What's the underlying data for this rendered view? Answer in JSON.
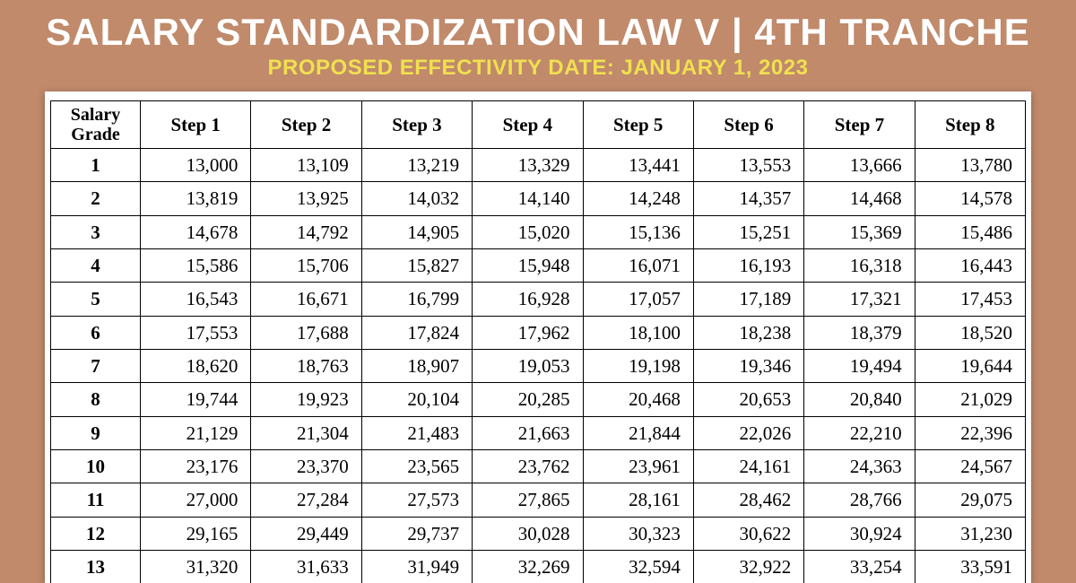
{
  "header": {
    "title": "SALARY STANDARDIZATION LAW V  |  4TH TRANCHE",
    "subtitle": "PROPOSED EFFECTIVITY DATE: JANUARY 1, 2023"
  },
  "table": {
    "grade_header": "Salary Grade",
    "columns": [
      "Step 1",
      "Step 2",
      "Step 3",
      "Step 4",
      "Step 5",
      "Step 6",
      "Step 7",
      "Step 8"
    ],
    "rows": [
      {
        "grade": "1",
        "values": [
          "13,000",
          "13,109",
          "13,219",
          "13,329",
          "13,441",
          "13,553",
          "13,666",
          "13,780"
        ]
      },
      {
        "grade": "2",
        "values": [
          "13,819",
          "13,925",
          "14,032",
          "14,140",
          "14,248",
          "14,357",
          "14,468",
          "14,578"
        ]
      },
      {
        "grade": "3",
        "values": [
          "14,678",
          "14,792",
          "14,905",
          "15,020",
          "15,136",
          "15,251",
          "15,369",
          "15,486"
        ]
      },
      {
        "grade": "4",
        "values": [
          "15,586",
          "15,706",
          "15,827",
          "15,948",
          "16,071",
          "16,193",
          "16,318",
          "16,443"
        ]
      },
      {
        "grade": "5",
        "values": [
          "16,543",
          "16,671",
          "16,799",
          "16,928",
          "17,057",
          "17,189",
          "17,321",
          "17,453"
        ]
      },
      {
        "grade": "6",
        "values": [
          "17,553",
          "17,688",
          "17,824",
          "17,962",
          "18,100",
          "18,238",
          "18,379",
          "18,520"
        ]
      },
      {
        "grade": "7",
        "values": [
          "18,620",
          "18,763",
          "18,907",
          "19,053",
          "19,198",
          "19,346",
          "19,494",
          "19,644"
        ]
      },
      {
        "grade": "8",
        "values": [
          "19,744",
          "19,923",
          "20,104",
          "20,285",
          "20,468",
          "20,653",
          "20,840",
          "21,029"
        ]
      },
      {
        "grade": "9",
        "values": [
          "21,129",
          "21,304",
          "21,483",
          "21,663",
          "21,844",
          "22,026",
          "22,210",
          "22,396"
        ]
      },
      {
        "grade": "10",
        "values": [
          "23,176",
          "23,370",
          "23,565",
          "23,762",
          "23,961",
          "24,161",
          "24,363",
          "24,567"
        ]
      },
      {
        "grade": "11",
        "values": [
          "27,000",
          "27,284",
          "27,573",
          "27,865",
          "28,161",
          "28,462",
          "28,766",
          "29,075"
        ]
      },
      {
        "grade": "12",
        "values": [
          "29,165",
          "29,449",
          "29,737",
          "30,028",
          "30,323",
          "30,622",
          "30,924",
          "31,230"
        ]
      },
      {
        "grade": "13",
        "values": [
          "31,320",
          "31,633",
          "31,949",
          "32,269",
          "32,594",
          "32,922",
          "33,254",
          "33,591"
        ]
      }
    ]
  },
  "style": {
    "background_color": "#c08a6b",
    "title_color": "#ffffff",
    "subtitle_color": "#f0e050",
    "table_bg": "#ffffff",
    "border_color": "#000000",
    "title_fontsize": 42,
    "subtitle_fontsize": 24,
    "cell_fontsize": 21
  }
}
